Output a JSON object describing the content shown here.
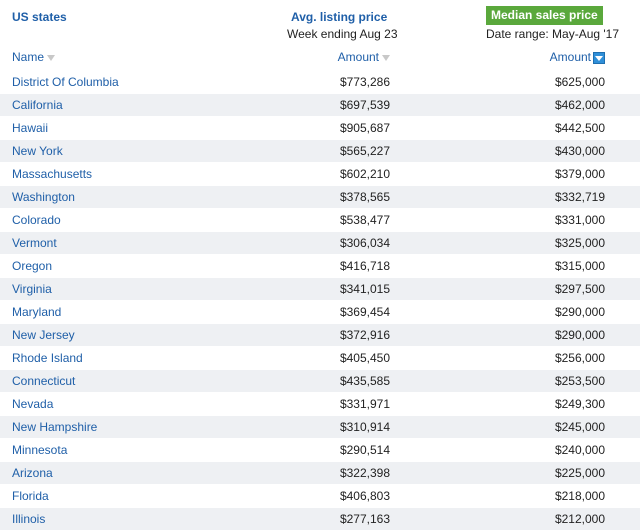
{
  "header": {
    "col1_title": "US states",
    "col2_title": "Avg. listing price",
    "col2_subtitle": "Week ending Aug 23",
    "col3_title": "Median sales price",
    "col3_subtitle": "Date range: May-Aug '17",
    "col1_label": "Name",
    "col2_label": "Amount",
    "col3_label": "Amount"
  },
  "rows": [
    {
      "name": "District Of Columbia",
      "avg": "$773,286",
      "median": "$625,000"
    },
    {
      "name": "California",
      "avg": "$697,539",
      "median": "$462,000"
    },
    {
      "name": "Hawaii",
      "avg": "$905,687",
      "median": "$442,500"
    },
    {
      "name": "New York",
      "avg": "$565,227",
      "median": "$430,000"
    },
    {
      "name": "Massachusetts",
      "avg": "$602,210",
      "median": "$379,000"
    },
    {
      "name": "Washington",
      "avg": "$378,565",
      "median": "$332,719"
    },
    {
      "name": "Colorado",
      "avg": "$538,477",
      "median": "$331,000"
    },
    {
      "name": "Vermont",
      "avg": "$306,034",
      "median": "$325,000"
    },
    {
      "name": "Oregon",
      "avg": "$416,718",
      "median": "$315,000"
    },
    {
      "name": "Virginia",
      "avg": "$341,015",
      "median": "$297,500"
    },
    {
      "name": "Maryland",
      "avg": "$369,454",
      "median": "$290,000"
    },
    {
      "name": "New Jersey",
      "avg": "$372,916",
      "median": "$290,000"
    },
    {
      "name": "Rhode Island",
      "avg": "$405,450",
      "median": "$256,000"
    },
    {
      "name": "Connecticut",
      "avg": "$435,585",
      "median": "$253,500"
    },
    {
      "name": "Nevada",
      "avg": "$331,971",
      "median": "$249,300"
    },
    {
      "name": "New Hampshire",
      "avg": "$310,914",
      "median": "$245,000"
    },
    {
      "name": "Minnesota",
      "avg": "$290,514",
      "median": "$240,000"
    },
    {
      "name": "Arizona",
      "avg": "$322,398",
      "median": "$225,000"
    },
    {
      "name": "Florida",
      "avg": "$406,803",
      "median": "$218,000"
    },
    {
      "name": "Illinois",
      "avg": "$277,163",
      "median": "$212,000"
    }
  ],
  "colors": {
    "link_blue": "#1f5fa8",
    "badge_green": "#5aa83c",
    "stripe": "#eef0f3",
    "sort_active": "#2f8fd8"
  },
  "icons": {
    "name_sort": "sort-down-inactive-icon",
    "avg_sort": "sort-down-inactive-icon",
    "median_sort": "sort-down-active-icon"
  }
}
